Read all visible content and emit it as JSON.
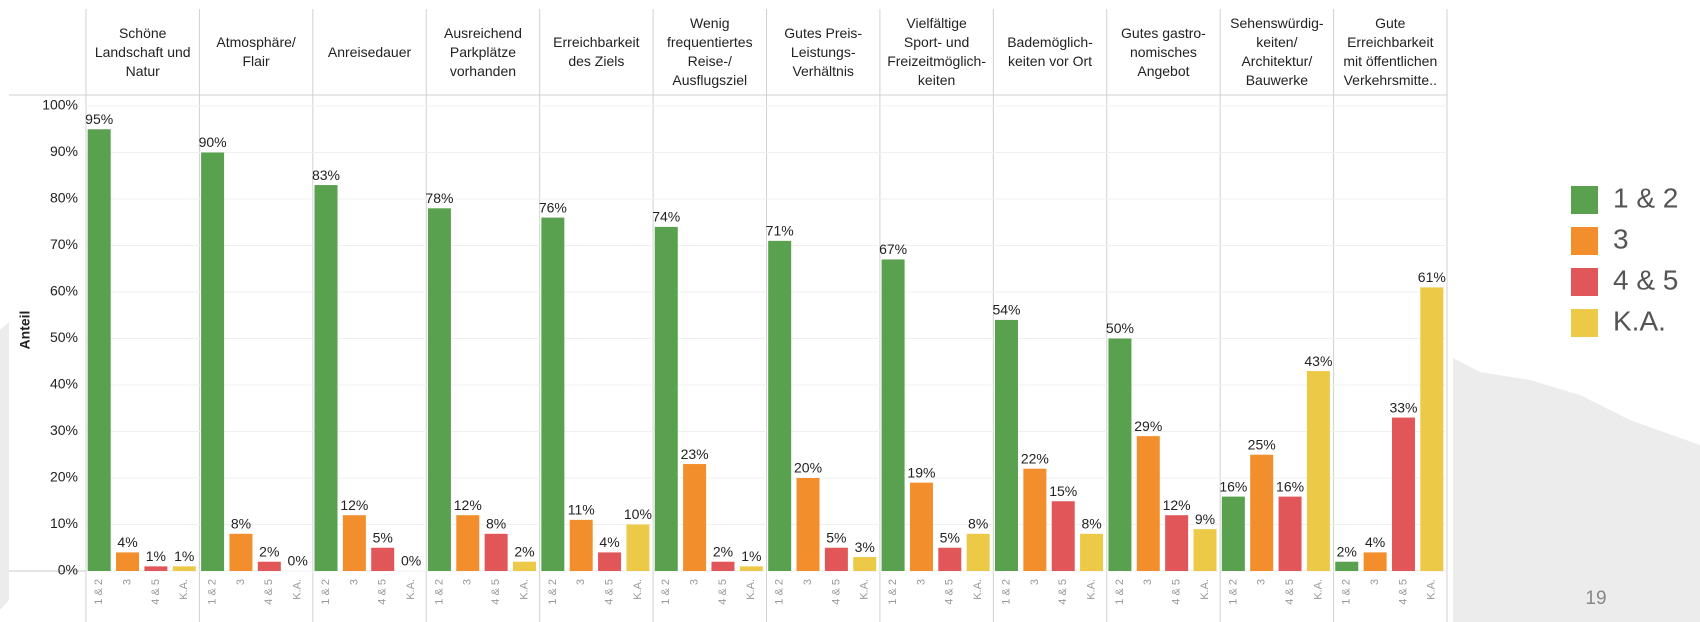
{
  "chart_data": {
    "type": "bar",
    "y_label": "Anteil",
    "page_number": "19",
    "categories": [
      "Schöne\nLandschaft und\nNatur",
      "Atmosphäre/\nFlair",
      "Anreisedauer",
      "Ausreichend\nParkplätze\nvorhanden",
      "Erreichbarkeit\ndes Ziels",
      "Wenig\nfrequentiertes\nReise-/\nAusflugsziel",
      "Gutes Preis-\nLeistungs-\nVerhältnis",
      "Vielfältige\nSport- und\nFreizeitmöglich-\nkeiten",
      "Bademöglich-\nkeiten vor Ort",
      "Gutes gastro-\nnomisches\nAngebot",
      "Sehenswürdig-\nkeiten/\nArchitektur/\nBauwerke",
      "Gute\nErreichbarkeit\nmit öffentlichen\nVerkehrsmitte.."
    ],
    "series": [
      {
        "name": "1 & 2",
        "color": "#59a14f",
        "values": [
          95,
          90,
          83,
          78,
          76,
          74,
          71,
          67,
          54,
          50,
          16,
          2
        ],
        "value_labels": [
          "95%",
          "90%",
          "83%",
          "78%",
          "76%",
          "74%",
          "71%",
          "67%",
          "54%",
          "50%",
          "16%",
          "2%"
        ]
      },
      {
        "name": "3",
        "color": "#f28e2b",
        "values": [
          4,
          8,
          12,
          12,
          11,
          23,
          20,
          19,
          22,
          29,
          25,
          4
        ],
        "value_labels": [
          "4%",
          "8%",
          "12%",
          "12%",
          "11%",
          "23%",
          "20%",
          "19%",
          "22%",
          "29%",
          "25%",
          "4%"
        ]
      },
      {
        "name": "4 & 5",
        "color": "#e15759",
        "values": [
          1,
          2,
          5,
          8,
          4,
          2,
          5,
          5,
          15,
          12,
          16,
          33
        ],
        "value_labels": [
          "1%",
          "2%",
          "5%",
          "8%",
          "4%",
          "2%",
          "5%",
          "5%",
          "15%",
          "12%",
          "16%",
          "33%"
        ]
      },
      {
        "name": "K.A.",
        "color": "#edc948",
        "values": [
          1,
          0,
          0,
          2,
          10,
          1,
          3,
          8,
          8,
          9,
          43,
          61
        ],
        "value_labels": [
          "1%",
          "0%",
          "0%",
          "2%",
          "10%",
          "1%",
          "3%",
          "8%",
          "8%",
          "9%",
          "43%",
          "61%"
        ]
      }
    ],
    "ylim": [
      0,
      100
    ],
    "yticks": [
      {
        "value": 0,
        "label": "0%"
      },
      {
        "value": 10,
        "label": "10%"
      },
      {
        "value": 20,
        "label": "20%"
      },
      {
        "value": 30,
        "label": "30%"
      },
      {
        "value": 40,
        "label": "40%"
      },
      {
        "value": 50,
        "label": "50%"
      },
      {
        "value": 60,
        "label": "60%"
      },
      {
        "value": 70,
        "label": "70%"
      },
      {
        "value": 80,
        "label": "80%"
      },
      {
        "value": 90,
        "label": "90%"
      },
      {
        "value": 100,
        "label": "100%"
      }
    ],
    "grid": true,
    "legend": "right"
  }
}
